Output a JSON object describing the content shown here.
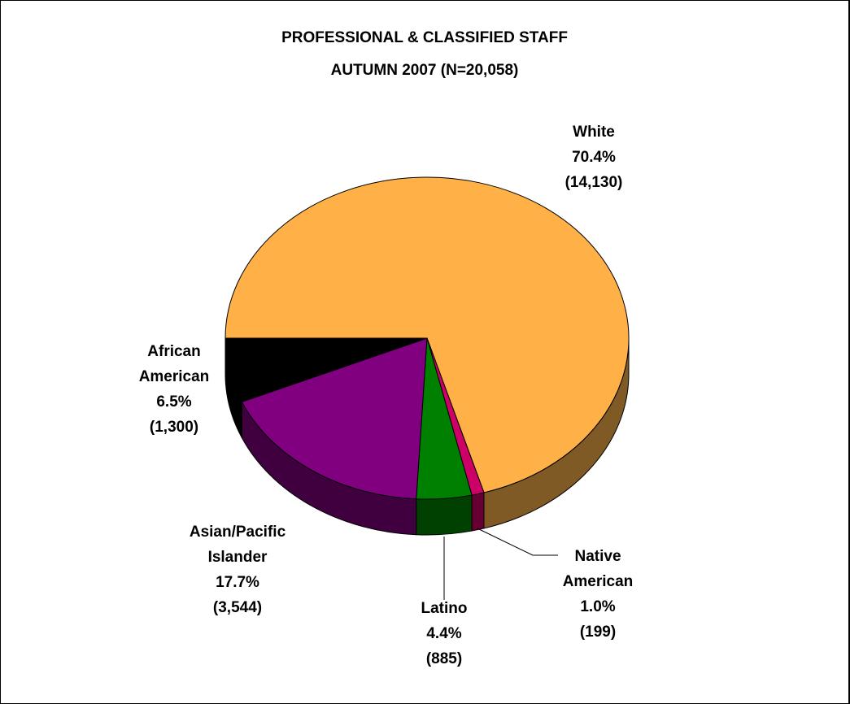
{
  "chart_data": {
    "type": "pie",
    "title": "PROFESSIONAL & CLASSIFIED STAFF",
    "subtitle": "AUTUMN 2007 (N=20,058)",
    "slices": [
      {
        "name": "White",
        "label_lines": [
          "White"
        ],
        "percent_label": "70.4%",
        "count_label": "(14,130)",
        "value": 14130,
        "color": "#FFB047",
        "side_color": "#7F5A25"
      },
      {
        "name": "Native American",
        "label_lines": [
          "Native",
          "American"
        ],
        "percent_label": "1.0%",
        "count_label": "(199)",
        "value": 199,
        "color": "#CC0066",
        "side_color": "#660033"
      },
      {
        "name": "Latino",
        "label_lines": [
          "Latino"
        ],
        "percent_label": "4.4%",
        "count_label": "(885)",
        "value": 885,
        "color": "#008000",
        "side_color": "#004000"
      },
      {
        "name": "Asian/Pacific Islander",
        "label_lines": [
          "Asian/Pacific",
          "Islander"
        ],
        "percent_label": "17.7%",
        "count_label": "(3,544)",
        "value": 3544,
        "color": "#800080",
        "side_color": "#400040"
      },
      {
        "name": "African American",
        "label_lines": [
          "African",
          "American"
        ],
        "percent_label": "6.5%",
        "count_label": "(1,300)",
        "value": 1300,
        "color": "#000000",
        "side_color": "#000000"
      }
    ]
  }
}
